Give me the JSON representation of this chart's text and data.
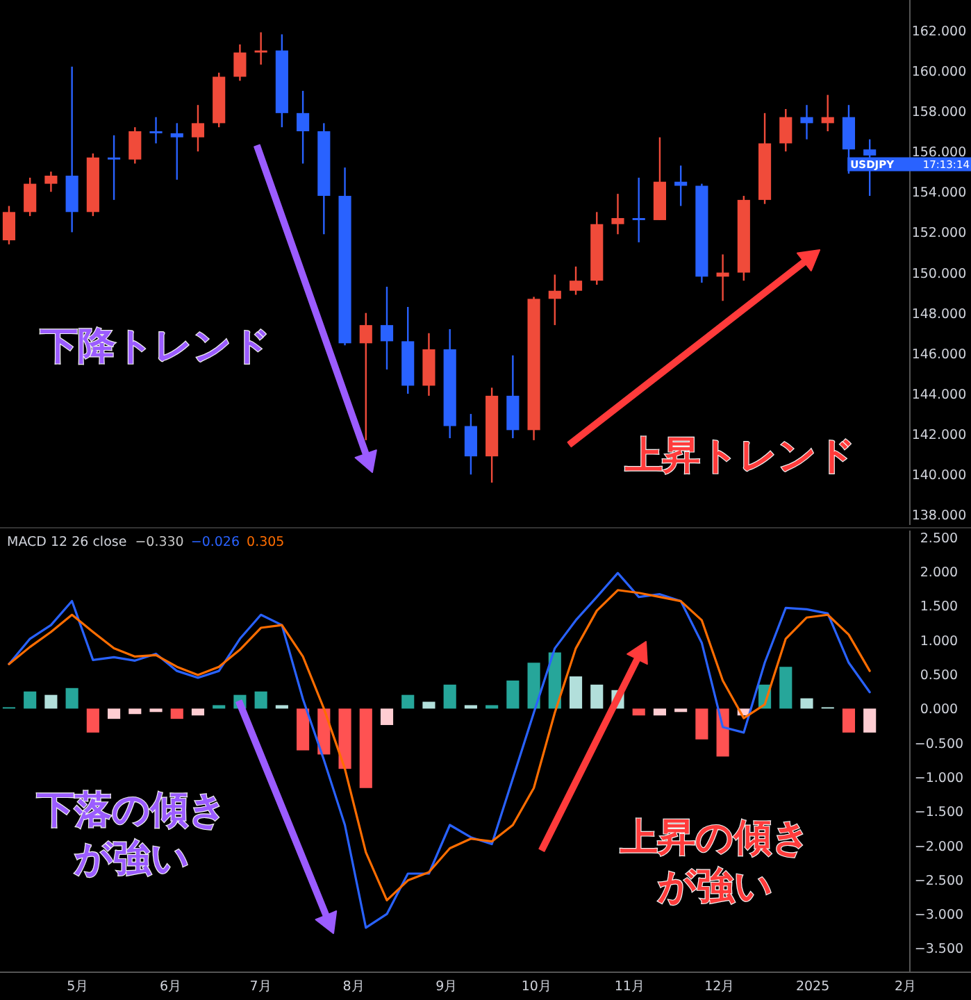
{
  "chart_data": [
    {
      "type": "candlestick",
      "x": [
        "2024-04-08",
        "2024-04-15",
        "2024-04-22",
        "2024-04-29",
        "2024-05-06",
        "2024-05-13",
        "2024-05-20",
        "2024-05-27",
        "2024-06-03",
        "2024-06-10",
        "2024-06-17",
        "2024-06-24",
        "2024-07-01",
        "2024-07-08",
        "2024-07-15",
        "2024-07-22",
        "2024-07-29",
        "2024-08-05",
        "2024-08-12",
        "2024-08-19",
        "2024-08-26",
        "2024-09-02",
        "2024-09-09",
        "2024-09-16",
        "2024-09-23",
        "2024-09-30",
        "2024-10-07",
        "2024-10-14",
        "2024-10-21",
        "2024-10-28",
        "2024-11-04",
        "2024-11-11",
        "2024-11-18",
        "2024-11-25",
        "2024-12-02",
        "2024-12-09",
        "2024-12-16",
        "2024-12-23",
        "2024-12-30",
        "2025-01-06",
        "2025-01-13",
        "2025-01-20"
      ],
      "ohlc": [
        [
          151.6,
          153.3,
          151.4,
          153.0
        ],
        [
          153.0,
          154.7,
          152.8,
          154.4
        ],
        [
          154.4,
          155.0,
          154.0,
          154.8
        ],
        [
          154.8,
          160.2,
          152.0,
          153.0
        ],
        [
          153.0,
          155.9,
          152.8,
          155.7
        ],
        [
          155.7,
          156.8,
          153.6,
          155.6
        ],
        [
          155.6,
          157.2,
          155.4,
          157.0
        ],
        [
          157.0,
          157.7,
          156.4,
          156.9
        ],
        [
          156.9,
          157.4,
          154.6,
          156.7
        ],
        [
          156.7,
          158.3,
          156.0,
          157.4
        ],
        [
          157.4,
          159.9,
          157.2,
          159.7
        ],
        [
          159.7,
          161.3,
          159.5,
          160.9
        ],
        [
          160.9,
          161.9,
          160.3,
          161.0
        ],
        [
          161.0,
          161.8,
          157.2,
          157.9
        ],
        [
          157.9,
          159.0,
          155.4,
          157.0
        ],
        [
          157.0,
          157.4,
          151.9,
          153.8
        ],
        [
          153.8,
          155.2,
          146.4,
          146.5
        ],
        [
          146.5,
          148.0,
          141.7,
          147.4
        ],
        [
          147.4,
          149.3,
          145.2,
          146.6
        ],
        [
          146.6,
          148.3,
          144.0,
          144.4
        ],
        [
          144.4,
          147.0,
          143.9,
          146.2
        ],
        [
          146.2,
          147.2,
          141.8,
          142.4
        ],
        [
          142.4,
          143.0,
          140.0,
          140.9
        ],
        [
          140.9,
          144.3,
          139.6,
          143.9
        ],
        [
          143.9,
          145.9,
          141.8,
          142.2
        ],
        [
          142.2,
          148.8,
          141.7,
          148.7
        ],
        [
          148.7,
          149.9,
          147.4,
          149.1
        ],
        [
          149.1,
          150.3,
          148.9,
          149.6
        ],
        [
          149.6,
          153.0,
          149.4,
          152.4
        ],
        [
          152.4,
          153.9,
          151.9,
          152.7
        ],
        [
          152.7,
          154.7,
          151.5,
          152.6
        ],
        [
          152.6,
          156.7,
          152.6,
          154.5
        ],
        [
          154.5,
          155.3,
          153.3,
          154.3
        ],
        [
          154.3,
          154.4,
          149.5,
          149.8
        ],
        [
          149.8,
          150.9,
          148.6,
          150.0
        ],
        [
          150.0,
          153.8,
          149.6,
          153.6
        ],
        [
          153.6,
          157.9,
          153.4,
          156.4
        ],
        [
          156.4,
          158.1,
          156.0,
          157.7
        ],
        [
          157.7,
          158.3,
          156.6,
          157.4
        ],
        [
          157.4,
          158.8,
          157.0,
          157.7
        ],
        [
          157.7,
          158.3,
          154.9,
          156.1
        ],
        [
          156.1,
          156.6,
          153.8,
          155.8
        ]
      ],
      "colors": [
        "#f04b3a",
        "#f04b3a",
        "#f04b3a",
        "#2962ff",
        "#f04b3a",
        "#2962ff",
        "#f04b3a",
        "#2962ff",
        "#2962ff",
        "#f04b3a",
        "#f04b3a",
        "#f04b3a",
        "#f04b3a",
        "#2962ff",
        "#2962ff",
        "#2962ff",
        "#2962ff",
        "#f04b3a",
        "#2962ff",
        "#2962ff",
        "#f04b3a",
        "#2962ff",
        "#2962ff",
        "#f04b3a",
        "#2962ff",
        "#f04b3a",
        "#f04b3a",
        "#f04b3a",
        "#f04b3a",
        "#f04b3a",
        "#2962ff",
        "#f04b3a",
        "#2962ff",
        "#2962ff",
        "#f04b3a",
        "#f04b3a",
        "#f04b3a",
        "#f04b3a",
        "#2962ff",
        "#f04b3a",
        "#2962ff",
        "#2962ff"
      ],
      "xlim": [
        "2024-04-05",
        "2025-02-01"
      ],
      "ylim": [
        137.5,
        163.5
      ],
      "yticks": [
        {
          "value": 138,
          "label": "138.000"
        },
        {
          "value": 140,
          "label": "140.000"
        },
        {
          "value": 142,
          "label": "142.000"
        },
        {
          "value": 144,
          "label": "144.000"
        },
        {
          "value": 146,
          "label": "146.000"
        },
        {
          "value": 148,
          "label": "148.000"
        },
        {
          "value": 150,
          "label": "150.000"
        },
        {
          "value": 152,
          "label": "152.000"
        },
        {
          "value": 154,
          "label": "154.000"
        },
        {
          "value": 156,
          "label": "156.000"
        },
        {
          "value": 158,
          "label": "158.000"
        },
        {
          "value": 160,
          "label": "160.000"
        },
        {
          "value": 162,
          "label": "162.000"
        }
      ],
      "tick_labels": "y",
      "grid": false,
      "annotations": [
        {
          "text": "USDJPY",
          "x": "2025-01-20",
          "y": 155.4
        },
        "17:13:14",
        "下降トレンド",
        "上昇トレンド"
      ]
    },
    {
      "type": "line",
      "title": "MACD 12 26 close",
      "x": [
        "2024-04-08",
        "2024-04-15",
        "2024-04-22",
        "2024-04-29",
        "2024-05-06",
        "2024-05-13",
        "2024-05-20",
        "2024-05-27",
        "2024-06-03",
        "2024-06-10",
        "2024-06-17",
        "2024-06-24",
        "2024-07-01",
        "2024-07-08",
        "2024-07-15",
        "2024-07-22",
        "2024-07-29",
        "2024-08-05",
        "2024-08-12",
        "2024-08-19",
        "2024-08-26",
        "2024-09-02",
        "2024-09-09",
        "2024-09-16",
        "2024-09-23",
        "2024-09-30",
        "2024-10-07",
        "2024-10-14",
        "2024-10-21",
        "2024-10-28",
        "2024-11-04",
        "2024-11-11",
        "2024-11-18",
        "2024-11-25",
        "2024-12-02",
        "2024-12-09",
        "2024-12-16",
        "2024-12-23",
        "2024-12-30",
        "2025-01-06",
        "2025-01-13",
        "2025-01-20"
      ],
      "series": [
        {
          "type": "bar",
          "colors": [
            "#26a69a",
            "#26a69a",
            "#b2dfdb",
            "#26a69a",
            "#ff5252",
            "#ffcdd2",
            "#ffcdd2",
            "#ffcdd2",
            "#ff5252",
            "#ffcdd2",
            "#26a69a",
            "#26a69a",
            "#26a69a",
            "#b2dfdb",
            "#ff5252",
            "#ff5252",
            "#ff5252",
            "#ff5252",
            "#ffcdd2",
            "#26a69a",
            "#b2dfdb",
            "#26a69a",
            "#b2dfdb",
            "#26a69a",
            "#26a69a",
            "#26a69a",
            "#26a69a",
            "#b2dfdb",
            "#b2dfdb",
            "#b2dfdb",
            "#ff5252",
            "#ffcdd2",
            "#ffcdd2",
            "#ff5252",
            "#ff5252",
            "#ffcdd2",
            "#26a69a",
            "#26a69a",
            "#b2dfdb",
            "#b2dfdb",
            "#ff5252",
            "#ffcdd2"
          ],
          "values": [
            0.02,
            0.25,
            0.2,
            0.3,
            -0.35,
            -0.15,
            -0.08,
            -0.05,
            -0.15,
            -0.1,
            0.05,
            0.2,
            0.25,
            0.05,
            -0.61,
            -0.67,
            -0.88,
            -1.16,
            -0.24,
            0.2,
            0.1,
            0.35,
            0.05,
            0.05,
            0.41,
            0.67,
            0.82,
            0.47,
            0.35,
            0.27,
            -0.1,
            -0.1,
            -0.05,
            -0.45,
            -0.7,
            -0.1,
            0.35,
            0.61,
            0.15,
            0.02,
            -0.35,
            -0.35
          ]
        },
        {
          "type": "line",
          "color": "#2962ff",
          "values": [
            0.65,
            1.02,
            1.22,
            1.57,
            0.71,
            0.75,
            0.7,
            0.8,
            0.55,
            0.45,
            0.55,
            1.02,
            1.37,
            1.22,
            0.14,
            -0.75,
            -1.7,
            -3.2,
            -3.0,
            -2.41,
            -2.41,
            -1.7,
            -1.88,
            -1.98,
            -1.02,
            -0.06,
            0.88,
            1.29,
            1.63,
            1.98,
            1.63,
            1.67,
            1.57,
            0.96,
            -0.27,
            -0.35,
            0.67,
            1.47,
            1.45,
            1.39,
            0.67,
            0.24
          ]
        },
        {
          "type": "line",
          "color": "#ff6d00",
          "values": [
            0.65,
            0.9,
            1.12,
            1.37,
            1.12,
            0.88,
            0.76,
            0.78,
            0.61,
            0.49,
            0.61,
            0.86,
            1.18,
            1.22,
            0.76,
            0.0,
            -0.88,
            -2.1,
            -2.8,
            -2.51,
            -2.39,
            -2.04,
            -1.9,
            -1.94,
            -1.7,
            -1.16,
            -0.06,
            0.88,
            1.43,
            1.73,
            1.69,
            1.63,
            1.57,
            1.29,
            0.41,
            -0.14,
            0.06,
            1.02,
            1.33,
            1.37,
            1.08,
            0.55
          ]
        }
      ],
      "xlim": [
        "2024-04-05",
        "2025-02-01"
      ],
      "xticks": [
        {
          "value": "2024-05-01",
          "label": "5月"
        },
        {
          "value": "2024-06-01",
          "label": "6月"
        },
        {
          "value": "2024-07-01",
          "label": "7月"
        },
        {
          "value": "2024-08-01",
          "label": "8月"
        },
        {
          "value": "2024-09-01",
          "label": "9月"
        },
        {
          "value": "2024-10-01",
          "label": "10月"
        },
        {
          "value": "2024-11-01",
          "label": "11月"
        },
        {
          "value": "2024-12-01",
          "label": "12月"
        },
        {
          "value": "2025-01-01",
          "label": "2025"
        },
        {
          "value": "2025-02-01",
          "label": "2月"
        }
      ],
      "ylim": [
        -3.85,
        2.6
      ],
      "yticks": [
        {
          "value": -3.5,
          "label": "−3.500"
        },
        {
          "value": -3,
          "label": "−3.000"
        },
        {
          "value": -2.5,
          "label": "−2.500"
        },
        {
          "value": -2,
          "label": "−2.000"
        },
        {
          "value": -1.5,
          "label": "−1.500"
        },
        {
          "value": -1,
          "label": "−1.000"
        },
        {
          "value": -0.5,
          "label": "−0.500"
        },
        {
          "value": 0,
          "label": "0.000"
        },
        {
          "value": 0.5,
          "label": "0.500"
        },
        {
          "value": 1,
          "label": "1.000"
        },
        {
          "value": 1.5,
          "label": "1.500"
        },
        {
          "value": 2,
          "label": "2.000"
        },
        {
          "value": 2.5,
          "label": "2.500"
        }
      ],
      "grid": false,
      "annotations": [
        "−0.330",
        "−0.026",
        "0.305",
        "下落の傾きが強い",
        "上昇の傾きが強い"
      ]
    }
  ]
}
